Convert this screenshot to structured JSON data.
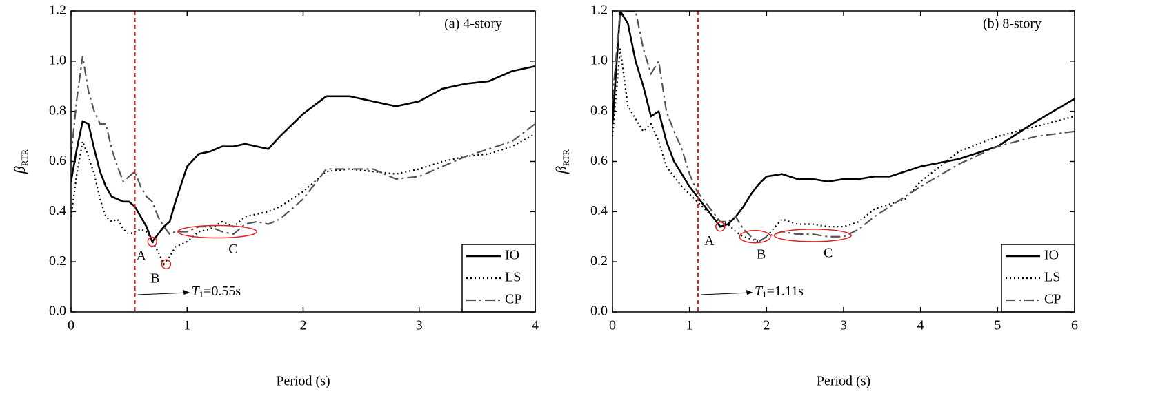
{
  "chart_data": [
    {
      "type": "line",
      "title": "(a) 4-story",
      "xlabel": "Period (s)",
      "ylabel": {
        "symbol": "β",
        "subscript": "RTR"
      },
      "x": [
        0,
        0.05,
        0.1,
        0.15,
        0.2,
        0.25,
        0.3,
        0.35,
        0.4,
        0.45,
        0.5,
        0.55,
        0.6,
        0.65,
        0.7,
        0.75,
        0.8,
        0.85,
        0.9,
        1.0,
        1.1,
        1.2,
        1.3,
        1.4,
        1.5,
        1.6,
        1.7,
        1.8,
        2.0,
        2.2,
        2.4,
        2.6,
        2.8,
        3.0,
        3.2,
        3.4,
        3.6,
        3.8,
        4.0
      ],
      "series": [
        {
          "name": "IO",
          "color": "#000000",
          "dash": "solid",
          "values": [
            0.52,
            0.65,
            0.76,
            0.75,
            0.65,
            0.56,
            0.5,
            0.46,
            0.45,
            0.44,
            0.44,
            0.42,
            0.38,
            0.34,
            0.28,
            0.31,
            0.34,
            0.36,
            0.44,
            0.58,
            0.63,
            0.64,
            0.66,
            0.66,
            0.67,
            0.66,
            0.65,
            0.7,
            0.79,
            0.86,
            0.86,
            0.84,
            0.82,
            0.84,
            0.89,
            0.91,
            0.92,
            0.96,
            0.98
          ]
        },
        {
          "name": "LS",
          "color": "#000000",
          "dash": "dot",
          "values": [
            0.38,
            0.55,
            0.68,
            0.62,
            0.55,
            0.45,
            0.38,
            0.36,
            0.37,
            0.33,
            0.31,
            0.32,
            0.33,
            0.32,
            0.28,
            0.24,
            0.19,
            0.22,
            0.26,
            0.28,
            0.32,
            0.33,
            0.36,
            0.34,
            0.38,
            0.39,
            0.4,
            0.42,
            0.48,
            0.56,
            0.57,
            0.56,
            0.55,
            0.57,
            0.6,
            0.62,
            0.63,
            0.66,
            0.71
          ]
        },
        {
          "name": "CP",
          "color": "#555555",
          "dash": "dashdot",
          "values": [
            0.62,
            0.85,
            1.02,
            0.88,
            0.8,
            0.75,
            0.75,
            0.65,
            0.58,
            0.52,
            0.54,
            0.56,
            0.5,
            0.46,
            0.44,
            0.38,
            0.34,
            0.31,
            0.32,
            0.32,
            0.34,
            0.34,
            0.32,
            0.31,
            0.35,
            0.36,
            0.35,
            0.37,
            0.45,
            0.57,
            0.57,
            0.57,
            0.53,
            0.54,
            0.58,
            0.62,
            0.65,
            0.68,
            0.75
          ]
        }
      ],
      "xlim": [
        0,
        4
      ],
      "xticks": [
        0,
        1,
        2,
        3,
        4
      ],
      "ylim": [
        0,
        1.2
      ],
      "yticks": [
        {
          "value": 0,
          "label": "0.0"
        },
        0.2,
        0.4,
        0.6,
        0.8,
        {
          "value": 1,
          "label": "1.0"
        },
        1.2
      ],
      "legend": "lower right",
      "period_line": {
        "x": 0.55,
        "color": "#e02020",
        "label": {
          "symbol": "T",
          "subscript": "1",
          "text": "=0.55s"
        }
      },
      "annotations": [
        {
          "label": "A",
          "x": 0.7,
          "y": 0.28,
          "color": "#e02020"
        },
        {
          "label": "B",
          "x": 0.82,
          "y": 0.19,
          "color": "#e02020"
        },
        {
          "label": "C",
          "x": [
            0.92,
            1.6
          ],
          "y": 0.32,
          "color": "#e02020"
        }
      ]
    },
    {
      "type": "line",
      "title": "(b) 8-story",
      "xlabel": "Period (s)",
      "ylabel": {
        "symbol": "β",
        "subscript": "RTR"
      },
      "x": [
        0,
        0.1,
        0.2,
        0.3,
        0.4,
        0.5,
        0.6,
        0.7,
        0.8,
        0.9,
        1.0,
        1.1,
        1.2,
        1.3,
        1.4,
        1.5,
        1.6,
        1.7,
        1.8,
        1.9,
        2.0,
        2.2,
        2.4,
        2.6,
        2.8,
        3.0,
        3.2,
        3.4,
        3.6,
        3.8,
        4.0,
        4.5,
        5.0,
        5.5,
        6.0
      ],
      "series": [
        {
          "name": "IO",
          "color": "#000000",
          "dash": "solid",
          "values": [
            0.75,
            1.2,
            1.15,
            1.0,
            0.9,
            0.78,
            0.8,
            0.68,
            0.6,
            0.55,
            0.5,
            0.46,
            0.42,
            0.38,
            0.34,
            0.35,
            0.38,
            0.42,
            0.47,
            0.51,
            0.54,
            0.55,
            0.53,
            0.53,
            0.52,
            0.53,
            0.53,
            0.54,
            0.54,
            0.56,
            0.58,
            0.61,
            0.66,
            0.76,
            0.85
          ]
        },
        {
          "name": "LS",
          "color": "#000000",
          "dash": "dot",
          "values": [
            0.7,
            1.05,
            0.82,
            0.77,
            0.72,
            0.75,
            0.68,
            0.58,
            0.54,
            0.5,
            0.47,
            0.44,
            0.41,
            0.38,
            0.36,
            0.35,
            0.32,
            0.3,
            0.29,
            0.28,
            0.3,
            0.37,
            0.35,
            0.35,
            0.34,
            0.34,
            0.36,
            0.41,
            0.43,
            0.45,
            0.52,
            0.64,
            0.7,
            0.74,
            0.78
          ]
        },
        {
          "name": "CP",
          "color": "#555555",
          "dash": "dashdot",
          "values": [
            0.85,
            1.2,
            1.2,
            1.2,
            1.05,
            0.95,
            1.0,
            0.8,
            0.72,
            0.65,
            0.55,
            0.48,
            0.44,
            0.4,
            0.36,
            0.36,
            0.38,
            0.33,
            0.3,
            0.28,
            0.3,
            0.32,
            0.31,
            0.31,
            0.3,
            0.3,
            0.33,
            0.38,
            0.42,
            0.46,
            0.5,
            0.59,
            0.66,
            0.7,
            0.72
          ]
        }
      ],
      "xlim": [
        0,
        6
      ],
      "xticks": [
        0,
        1,
        2,
        3,
        4,
        5,
        6
      ],
      "ylim": [
        0,
        1.2
      ],
      "yticks": [
        {
          "value": 0,
          "label": "0.0"
        },
        0.2,
        0.4,
        0.6,
        0.8,
        {
          "value": 1,
          "label": "1.0"
        },
        1.2
      ],
      "legend": "lower right",
      "period_line": {
        "x": 1.11,
        "color": "#e02020",
        "label": {
          "symbol": "T",
          "subscript": "1",
          "text": "=1.11s"
        }
      },
      "annotations": [
        {
          "label": "A",
          "x": 1.4,
          "y": 0.34,
          "color": "#e02020"
        },
        {
          "label": "B",
          "x": [
            1.65,
            2.05
          ],
          "y": 0.3,
          "color": "#e02020"
        },
        {
          "label": "C",
          "x": [
            2.1,
            3.1
          ],
          "y": 0.305,
          "color": "#e02020"
        }
      ]
    }
  ]
}
